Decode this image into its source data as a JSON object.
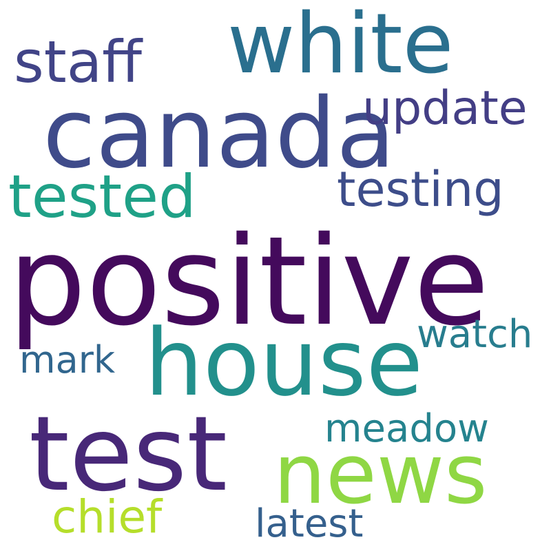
{
  "words": [
    {
      "id": "positive",
      "text": "positive",
      "color": "#440a5c"
    },
    {
      "id": "canada",
      "text": "canada",
      "color": "#3f4b8a"
    },
    {
      "id": "house",
      "text": "house",
      "color": "#22908c"
    },
    {
      "id": "white",
      "text": "white",
      "color": "#2a6f8e"
    },
    {
      "id": "test",
      "text": "test",
      "color": "#482878"
    },
    {
      "id": "news",
      "text": "news",
      "color": "#8fd744"
    },
    {
      "id": "tested",
      "text": "tested",
      "color": "#1fa187"
    },
    {
      "id": "testing",
      "text": "testing",
      "color": "#3d4d8a"
    },
    {
      "id": "staff",
      "text": "staff",
      "color": "#414487"
    },
    {
      "id": "update",
      "text": "update",
      "color": "#433e85"
    },
    {
      "id": "watch",
      "text": "watch",
      "color": "#287d8e"
    },
    {
      "id": "mark",
      "text": "mark",
      "color": "#31668e"
    },
    {
      "id": "meadow",
      "text": "meadow",
      "color": "#25838e"
    },
    {
      "id": "chief",
      "text": "chief",
      "color": "#b5de2b"
    },
    {
      "id": "latest",
      "text": "latest",
      "color": "#35608d"
    }
  ]
}
